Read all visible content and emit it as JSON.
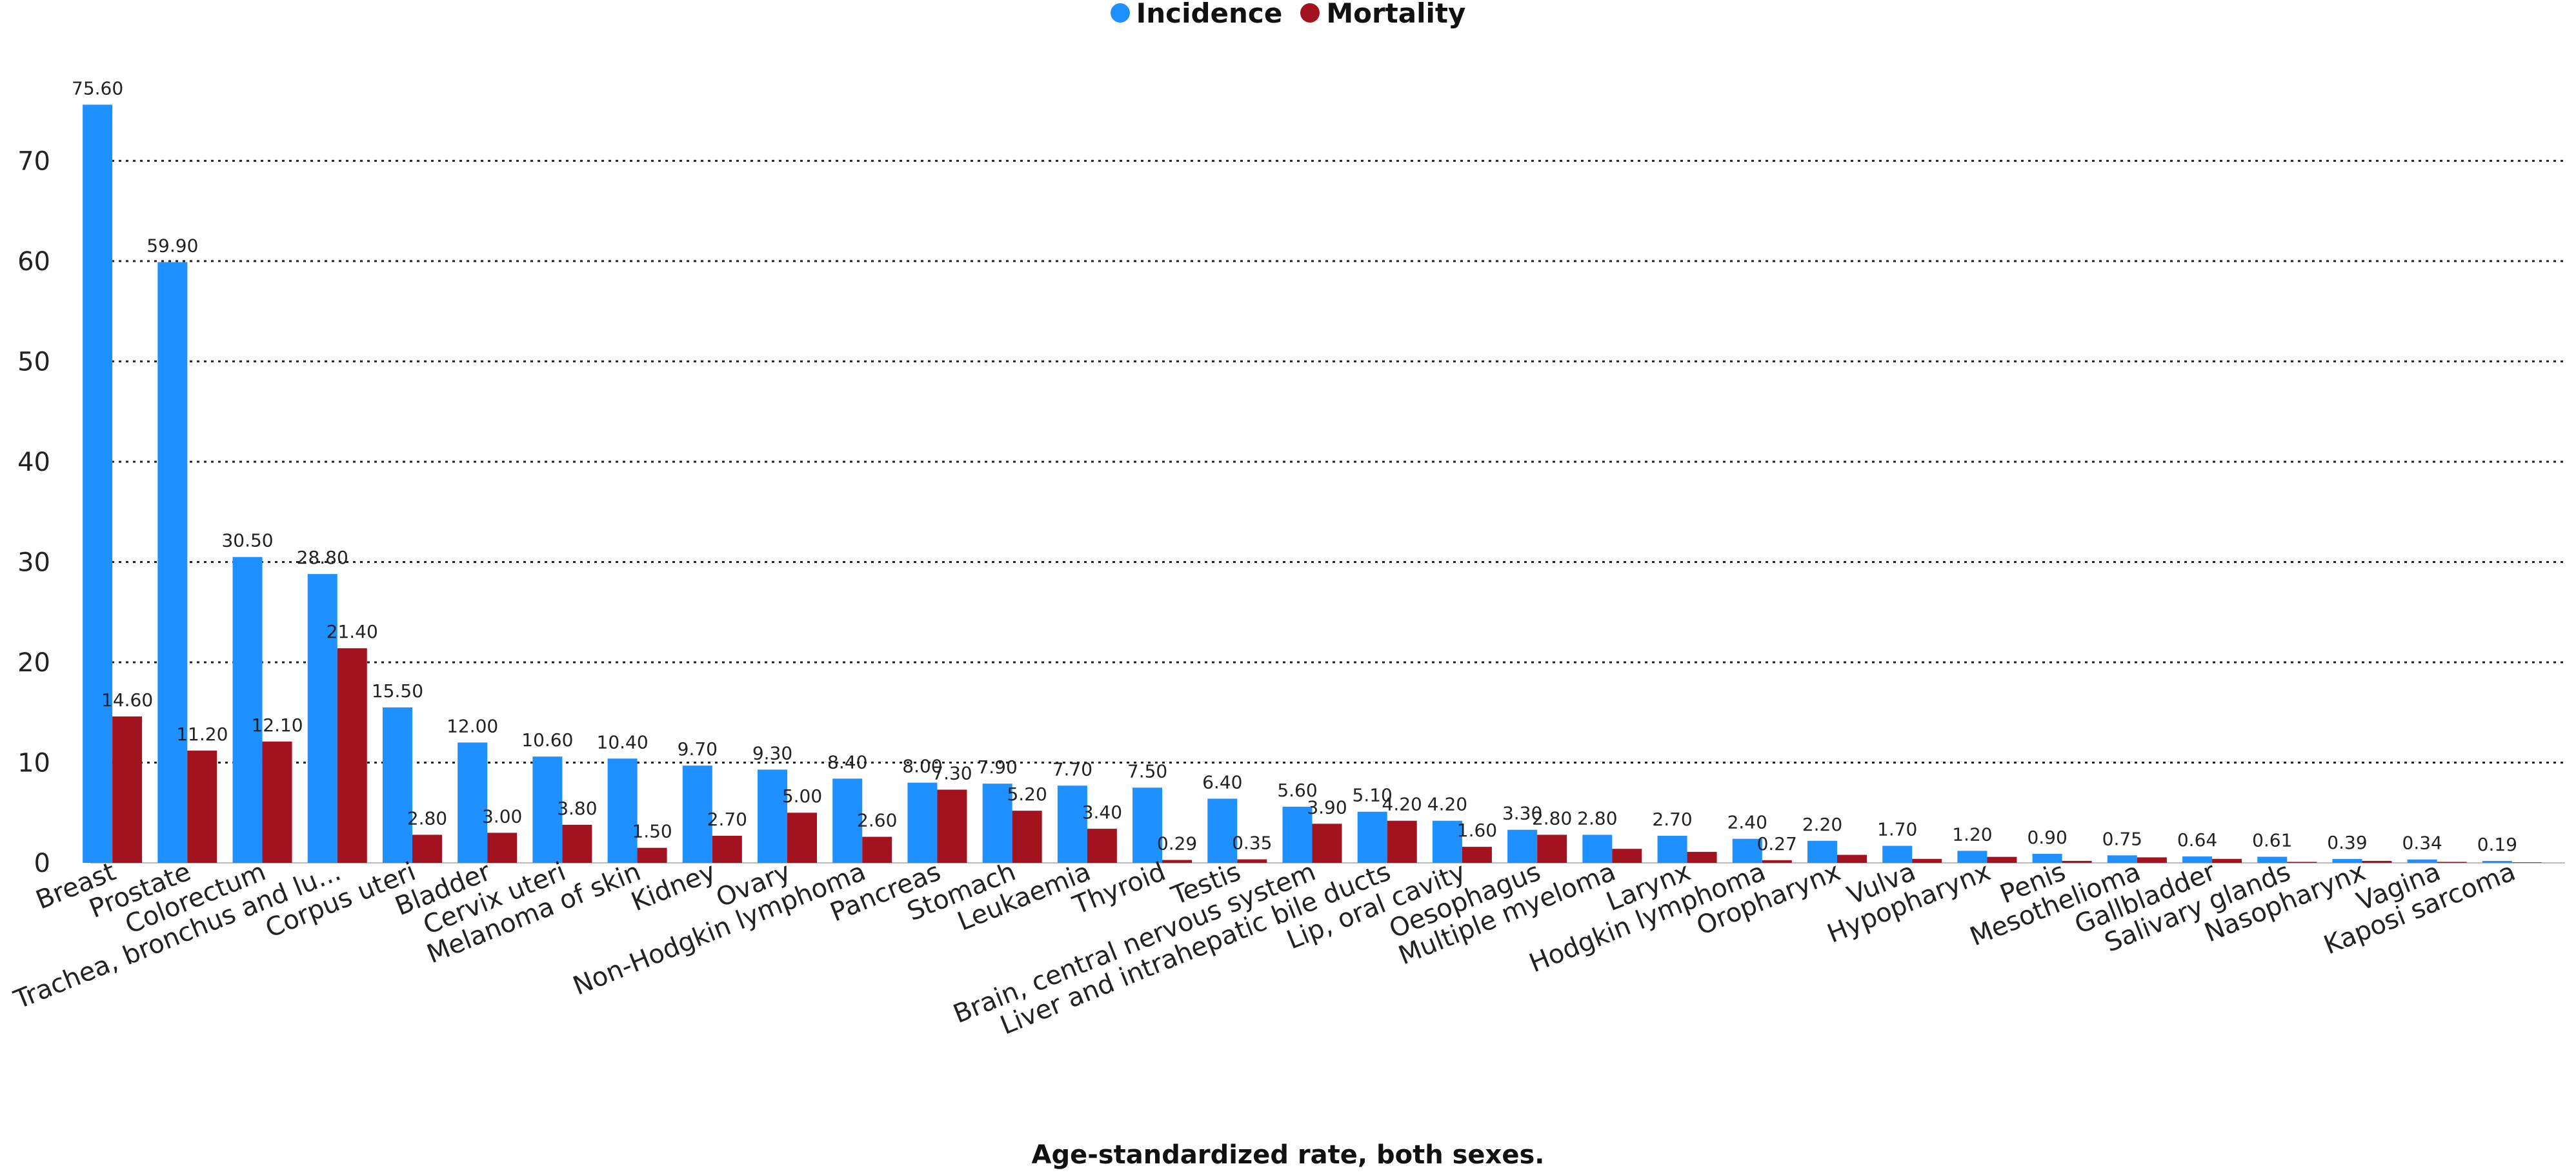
{
  "legend": {
    "incidence_label": "Incidence",
    "mortality_label": "Mortality"
  },
  "colors": {
    "incidence": "#1E90FF",
    "mortality": "#A3121F"
  },
  "chart_data": {
    "type": "bar",
    "categories": [
      "Breast",
      "Prostate",
      "Colorectum",
      "Trachea, bronchus and lu...",
      "Corpus uteri",
      "Bladder",
      "Cervix uteri",
      "Melanoma of skin",
      "Kidney",
      "Ovary",
      "Non-Hodgkin lymphoma",
      "Pancreas",
      "Stomach",
      "Leukaemia",
      "Thyroid",
      "Testis",
      "Brain, central nervous system",
      "Liver and intrahepatic bile ducts",
      "Lip, oral cavity",
      "Oesophagus",
      "Multiple myeloma",
      "Larynx",
      "Hodgkin lymphoma",
      "Oropharynx",
      "Vulva",
      "Hypopharynx",
      "Penis",
      "Mesothelioma",
      "Gallbladder",
      "Salivary glands",
      "Nasopharynx",
      "Vagina",
      "Kaposi sarcoma"
    ],
    "series": [
      {
        "name": "Incidence",
        "values": [
          75.6,
          59.9,
          30.5,
          28.8,
          15.5,
          12.0,
          10.6,
          10.4,
          9.7,
          9.3,
          8.4,
          8.0,
          7.9,
          7.7,
          7.5,
          6.4,
          5.6,
          5.1,
          4.2,
          3.3,
          2.8,
          2.7,
          2.4,
          2.2,
          1.7,
          1.2,
          0.9,
          0.75,
          0.64,
          0.61,
          0.39,
          0.34,
          0.19
        ]
      },
      {
        "name": "Mortality",
        "values": [
          14.6,
          11.2,
          12.1,
          21.4,
          2.8,
          3.0,
          3.8,
          1.5,
          2.7,
          5.0,
          2.6,
          7.3,
          5.2,
          3.4,
          0.29,
          0.35,
          3.9,
          4.2,
          1.6,
          2.8,
          1.4,
          1.1,
          0.27,
          0.8,
          0.4,
          0.6,
          0.2,
          0.55,
          0.4,
          0.1,
          0.2,
          0.1,
          0.05
        ]
      }
    ],
    "mortality_labels": [
      "14.60",
      "11.20",
      "12.10",
      "21.40",
      "2.80",
      "3.00",
      "3.80",
      "1.50",
      "2.70",
      "5.00",
      "2.60",
      "7.30",
      "5.20",
      "3.40",
      "0.29",
      "0.35",
      "3.90",
      "4.20",
      "1.60",
      "2.80",
      "",
      "",
      "0.27",
      "",
      "",
      "",
      "",
      "",
      "",
      "",
      "",
      "",
      ""
    ],
    "yticks": [
      0,
      10,
      20,
      30,
      40,
      50,
      60,
      70
    ],
    "ylim": [
      0,
      78
    ],
    "grid": true,
    "legend_position": "top-center",
    "xlabel": "Age-standardized rate, both sexes.",
    "ylabel": ""
  }
}
